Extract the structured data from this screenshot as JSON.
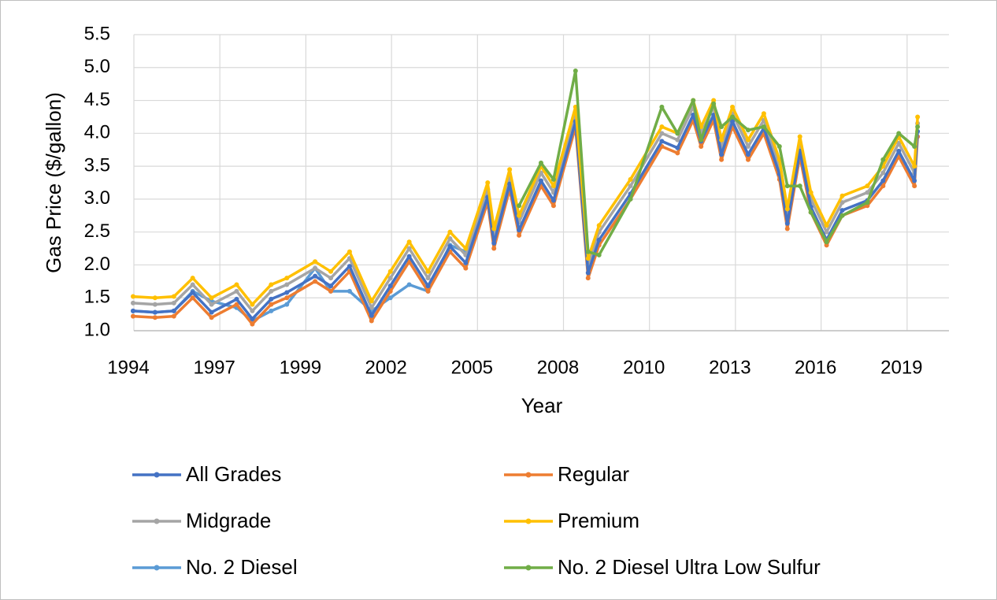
{
  "chart_data": {
    "type": "line",
    "xlabel": "Year",
    "ylabel": "Gas Price ($/gallon)",
    "xlim": [
      1994.45,
      2020.6
    ],
    "xticks": [
      {
        "value": 1994.45,
        "label": "1994"
      },
      {
        "value": 1997.19,
        "label": "1997"
      },
      {
        "value": 1999.93,
        "label": "1999"
      },
      {
        "value": 2002.66,
        "label": "2002"
      },
      {
        "value": 2005.4,
        "label": "2005"
      },
      {
        "value": 2008.14,
        "label": "2008"
      },
      {
        "value": 2010.88,
        "label": "2010"
      },
      {
        "value": 2013.62,
        "label": "2013"
      },
      {
        "value": 2016.35,
        "label": "2016"
      },
      {
        "value": 2019.09,
        "label": "2019"
      }
    ],
    "ylim": [
      1.0,
      5.5
    ],
    "yticks": [
      {
        "value": 1.0,
        "label": "1.0"
      },
      1.5,
      {
        "value": 2.0,
        "label": "2.0"
      },
      2.5,
      {
        "value": 3.0,
        "label": "3.0"
      },
      3.5,
      {
        "value": 4.0,
        "label": "4.0"
      },
      4.5,
      {
        "value": 5.0,
        "label": "5.0"
      },
      5.5
    ],
    "grid": true,
    "legend": "bottom",
    "x": [
      1994.6,
      1995.3,
      1995.9,
      1996.5,
      1997.1,
      1997.9,
      1998.4,
      1999.0,
      1999.5,
      2000.4,
      2000.9,
      2001.5,
      2002.2,
      2002.8,
      2003.4,
      2004.0,
      2004.7,
      2005.2,
      2005.9,
      2006.1,
      2006.6,
      2006.9,
      2007.6,
      2008.0,
      2008.7,
      2009.1,
      2009.45,
      2010.45,
      2011.45,
      2011.95,
      2012.45,
      2012.7,
      2013.1,
      2013.35,
      2013.7,
      2014.2,
      2014.7,
      2015.2,
      2015.45,
      2015.85,
      2016.2,
      2016.7,
      2017.2,
      2018.0,
      2018.5,
      2019.0,
      2019.5,
      2019.6
    ],
    "series": [
      {
        "name": "No. 2 Diesel",
        "color": "#5b9bd5",
        "values": [
          1.3,
          1.28,
          1.3,
          1.6,
          1.45,
          1.35,
          1.15,
          1.3,
          1.4,
          1.95,
          1.6,
          1.6,
          1.3,
          1.5,
          1.7,
          1.6,
          2.3,
          2.2,
          3.15,
          2.5,
          3.25,
          2.7,
          null,
          null,
          null,
          null,
          null,
          null,
          null,
          null,
          null,
          null,
          null,
          null,
          null,
          null,
          null,
          null,
          null,
          null,
          null,
          null,
          null,
          null,
          null,
          null,
          null,
          null
        ]
      },
      {
        "name": "Regular",
        "color": "#ed7d31",
        "values": [
          1.22,
          1.2,
          1.22,
          1.5,
          1.2,
          1.4,
          1.1,
          1.4,
          1.5,
          1.75,
          1.6,
          1.9,
          1.15,
          1.6,
          2.05,
          1.6,
          2.2,
          1.95,
          2.95,
          2.25,
          3.15,
          2.45,
          3.2,
          2.9,
          4.1,
          1.8,
          2.3,
          3.0,
          3.8,
          3.7,
          4.2,
          3.8,
          4.2,
          3.6,
          4.1,
          3.6,
          4.0,
          3.3,
          2.55,
          3.65,
          2.8,
          2.3,
          2.75,
          2.9,
          3.2,
          3.65,
          3.2,
          3.95
        ]
      },
      {
        "name": "Midgrade",
        "color": "#a5a5a5",
        "values": [
          1.42,
          1.4,
          1.42,
          1.7,
          1.4,
          1.6,
          1.3,
          1.6,
          1.7,
          1.95,
          1.8,
          2.1,
          1.35,
          1.8,
          2.25,
          1.8,
          2.4,
          2.15,
          3.15,
          2.45,
          3.35,
          2.65,
          3.4,
          3.1,
          4.3,
          2.0,
          2.5,
          3.2,
          4.0,
          3.9,
          4.4,
          4.0,
          4.4,
          3.8,
          4.3,
          3.8,
          4.2,
          3.5,
          2.75,
          3.85,
          3.0,
          2.5,
          2.95,
          3.1,
          3.4,
          3.85,
          3.4,
          4.15
        ]
      },
      {
        "name": "All Grades",
        "color": "#4472c4",
        "values": [
          1.3,
          1.28,
          1.3,
          1.58,
          1.28,
          1.48,
          1.18,
          1.48,
          1.58,
          1.83,
          1.68,
          1.98,
          1.23,
          1.68,
          2.13,
          1.68,
          2.28,
          2.03,
          3.03,
          2.33,
          3.23,
          2.53,
          3.28,
          2.98,
          4.18,
          1.88,
          2.38,
          3.08,
          3.88,
          3.78,
          4.28,
          3.88,
          4.28,
          3.68,
          4.18,
          3.68,
          4.08,
          3.38,
          2.63,
          3.73,
          2.88,
          2.38,
          2.83,
          2.98,
          3.28,
          3.73,
          3.28,
          4.03
        ]
      },
      {
        "name": "Premium",
        "color": "#ffc000",
        "values": [
          1.52,
          1.5,
          1.52,
          1.8,
          1.5,
          1.7,
          1.4,
          1.7,
          1.8,
          2.05,
          1.9,
          2.2,
          1.45,
          1.9,
          2.35,
          1.9,
          2.5,
          2.25,
          3.25,
          2.55,
          3.45,
          2.75,
          3.5,
          3.2,
          4.4,
          2.1,
          2.6,
          3.3,
          4.1,
          4.0,
          4.5,
          4.1,
          4.5,
          3.9,
          4.4,
          3.9,
          4.3,
          3.6,
          2.85,
          3.95,
          3.1,
          2.6,
          3.05,
          3.2,
          3.5,
          3.95,
          3.5,
          4.25
        ]
      },
      {
        "name": "No. 2 Diesel Ultra Low Sulfur",
        "color": "#70ad47",
        "values": [
          null,
          null,
          null,
          null,
          null,
          null,
          null,
          null,
          null,
          null,
          null,
          null,
          null,
          null,
          null,
          null,
          null,
          null,
          null,
          null,
          null,
          2.9,
          3.55,
          3.3,
          4.95,
          2.2,
          2.15,
          3.0,
          4.4,
          4.0,
          4.5,
          3.9,
          4.45,
          4.1,
          4.25,
          4.05,
          4.1,
          3.8,
          3.2,
          3.2,
          2.8,
          2.35,
          2.75,
          2.95,
          3.6,
          4.0,
          3.8,
          4.1
        ]
      }
    ]
  }
}
